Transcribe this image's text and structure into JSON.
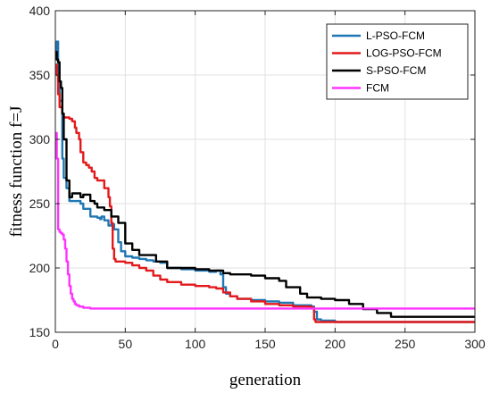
{
  "chart_data": {
    "type": "line",
    "title": "",
    "xlabel": "generation",
    "ylabel": "fitness function f=J",
    "xlim": [
      0,
      300
    ],
    "ylim": [
      150,
      400
    ],
    "xticks": [
      0,
      50,
      100,
      150,
      200,
      250,
      300
    ],
    "yticks": [
      150,
      200,
      250,
      300,
      350,
      400
    ],
    "grid": true,
    "legend_position": "top-right",
    "series": [
      {
        "name": "L-PSO-FCM",
        "color": "#1f77b4",
        "points": [
          [
            0,
            365
          ],
          [
            1,
            376
          ],
          [
            2,
            345
          ],
          [
            3,
            330
          ],
          [
            4,
            330
          ],
          [
            5,
            285
          ],
          [
            6,
            270
          ],
          [
            8,
            262
          ],
          [
            10,
            252
          ],
          [
            15,
            252
          ],
          [
            18,
            250
          ],
          [
            20,
            246
          ],
          [
            23,
            246
          ],
          [
            25,
            240
          ],
          [
            30,
            239
          ],
          [
            32,
            238
          ],
          [
            33,
            240
          ],
          [
            35,
            237
          ],
          [
            38,
            233
          ],
          [
            40,
            234
          ],
          [
            42,
            230
          ],
          [
            45,
            220
          ],
          [
            47,
            213
          ],
          [
            50,
            209
          ],
          [
            55,
            208
          ],
          [
            60,
            207
          ],
          [
            65,
            206
          ],
          [
            70,
            205
          ],
          [
            75,
            204
          ],
          [
            80,
            200
          ],
          [
            90,
            199
          ],
          [
            100,
            198
          ],
          [
            110,
            197
          ],
          [
            115,
            198
          ],
          [
            118,
            195
          ],
          [
            120,
            185
          ],
          [
            122,
            180
          ],
          [
            125,
            178
          ],
          [
            130,
            176
          ],
          [
            140,
            175
          ],
          [
            150,
            174
          ],
          [
            160,
            173
          ],
          [
            170,
            171
          ],
          [
            183,
            170
          ],
          [
            185,
            166
          ],
          [
            187,
            160
          ],
          [
            190,
            159
          ],
          [
            200,
            158
          ],
          [
            220,
            158
          ],
          [
            250,
            158
          ],
          [
            300,
            158
          ]
        ]
      },
      {
        "name": "LOG-PSO-FCM",
        "color": "#e31a1c",
        "points": [
          [
            0,
            358
          ],
          [
            1,
            350
          ],
          [
            2,
            335
          ],
          [
            3,
            325
          ],
          [
            5,
            320
          ],
          [
            6,
            317
          ],
          [
            10,
            316
          ],
          [
            12,
            314
          ],
          [
            14,
            309
          ],
          [
            15,
            305
          ],
          [
            17,
            300
          ],
          [
            18,
            290
          ],
          [
            20,
            282
          ],
          [
            22,
            280
          ],
          [
            24,
            278
          ],
          [
            26,
            275
          ],
          [
            28,
            270
          ],
          [
            30,
            268
          ],
          [
            33,
            268
          ],
          [
            35,
            262
          ],
          [
            38,
            255
          ],
          [
            39,
            248
          ],
          [
            40,
            235
          ],
          [
            41,
            215
          ],
          [
            42,
            207
          ],
          [
            43,
            205
          ],
          [
            50,
            204
          ],
          [
            55,
            202
          ],
          [
            60,
            200
          ],
          [
            65,
            198
          ],
          [
            70,
            194
          ],
          [
            75,
            191
          ],
          [
            80,
            189
          ],
          [
            90,
            187
          ],
          [
            100,
            186
          ],
          [
            110,
            185
          ],
          [
            115,
            184
          ],
          [
            120,
            181
          ],
          [
            125,
            178
          ],
          [
            130,
            176
          ],
          [
            140,
            174
          ],
          [
            150,
            172
          ],
          [
            160,
            171
          ],
          [
            170,
            170
          ],
          [
            183,
            169
          ],
          [
            185,
            160
          ],
          [
            186,
            158
          ],
          [
            200,
            158
          ],
          [
            250,
            158
          ],
          [
            300,
            158
          ]
        ]
      },
      {
        "name": "S-PSO-FCM",
        "color": "#000000",
        "points": [
          [
            0,
            368
          ],
          [
            1,
            362
          ],
          [
            2,
            360
          ],
          [
            3,
            345
          ],
          [
            4,
            340
          ],
          [
            5,
            320
          ],
          [
            6,
            300
          ],
          [
            8,
            268
          ],
          [
            10,
            255
          ],
          [
            12,
            258
          ],
          [
            15,
            258
          ],
          [
            18,
            255
          ],
          [
            20,
            257
          ],
          [
            23,
            257
          ],
          [
            25,
            252
          ],
          [
            28,
            250
          ],
          [
            30,
            247
          ],
          [
            35,
            245
          ],
          [
            40,
            240
          ],
          [
            45,
            235
          ],
          [
            50,
            219
          ],
          [
            55,
            214
          ],
          [
            60,
            210
          ],
          [
            65,
            210
          ],
          [
            70,
            210
          ],
          [
            72,
            205
          ],
          [
            80,
            200
          ],
          [
            90,
            200
          ],
          [
            100,
            199
          ],
          [
            110,
            198
          ],
          [
            120,
            196
          ],
          [
            125,
            195
          ],
          [
            130,
            195
          ],
          [
            140,
            194
          ],
          [
            150,
            192
          ],
          [
            160,
            190
          ],
          [
            165,
            185
          ],
          [
            175,
            180
          ],
          [
            180,
            177
          ],
          [
            190,
            176
          ],
          [
            200,
            175
          ],
          [
            210,
            172
          ],
          [
            220,
            168
          ],
          [
            230,
            165
          ],
          [
            240,
            162
          ],
          [
            260,
            162
          ],
          [
            300,
            162
          ]
        ]
      },
      {
        "name": "FCM",
        "color": "#ff33ff",
        "points": [
          [
            0,
            305
          ],
          [
            1,
            285
          ],
          [
            2,
            230
          ],
          [
            3,
            228
          ],
          [
            4,
            227
          ],
          [
            5,
            226
          ],
          [
            6,
            222
          ],
          [
            7,
            215
          ],
          [
            8,
            205
          ],
          [
            9,
            195
          ],
          [
            10,
            186
          ],
          [
            11,
            180
          ],
          [
            12,
            176
          ],
          [
            13,
            174
          ],
          [
            14,
            172
          ],
          [
            15,
            171
          ],
          [
            17,
            170
          ],
          [
            20,
            169
          ],
          [
            25,
            168.5
          ],
          [
            30,
            168.5
          ],
          [
            50,
            168.5
          ],
          [
            100,
            168.5
          ],
          [
            150,
            168.5
          ],
          [
            200,
            168.5
          ],
          [
            250,
            168.5
          ],
          [
            300,
            168.5
          ]
        ]
      }
    ]
  }
}
